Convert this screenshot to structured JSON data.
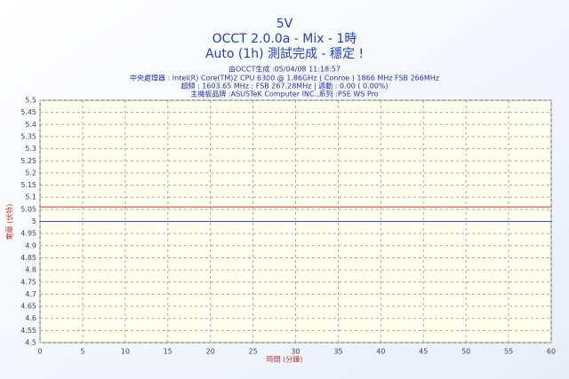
{
  "chart_data": {
    "type": "line",
    "title": "5V",
    "subtitle_lines": [
      "OCCT 2.0.0a - Mix - 1時",
      "Auto (1h) 測試完成 - 穩定 !"
    ],
    "info_lines": [
      "由OCCT生成 :05/04/08 11:18:57",
      "中央處理器 : Intel(R) Core(TM)2 CPU 6300 @ 1.86GHz ( Conroe ) 1866 MHz FSB 266MHz",
      "超頻 : 1603.65 MHz ; FSB 267.28MHz | 遞動 : 0.00 ( 0.00%)",
      "主機板品牌 :ASUSTeK Computer INC.,系列 :P5E WS Pro"
    ],
    "xlabel": "時間 (分鐘)",
    "ylabel": "電壓 (伏特)",
    "x": [
      0,
      60
    ],
    "series": [
      {
        "color": "#c0392b",
        "values": [
          5.06,
          5.06
        ]
      },
      {
        "color": "#3344ee",
        "values": [
          5.0,
          5.0
        ]
      }
    ],
    "xlim": [
      0,
      60
    ],
    "xticks": [
      0,
      5,
      10,
      15,
      20,
      25,
      30,
      35,
      40,
      45,
      50,
      55,
      60
    ],
    "ylim": [
      4.5,
      5.5
    ],
    "yticks": [
      4.5,
      4.55,
      4.6,
      4.65,
      4.7,
      4.75,
      4.8,
      4.85,
      4.9,
      4.95,
      5,
      5.05,
      5.1,
      5.15,
      5.2,
      5.25,
      5.3,
      5.35,
      5.4,
      5.45,
      5.5
    ],
    "grid": true
  }
}
